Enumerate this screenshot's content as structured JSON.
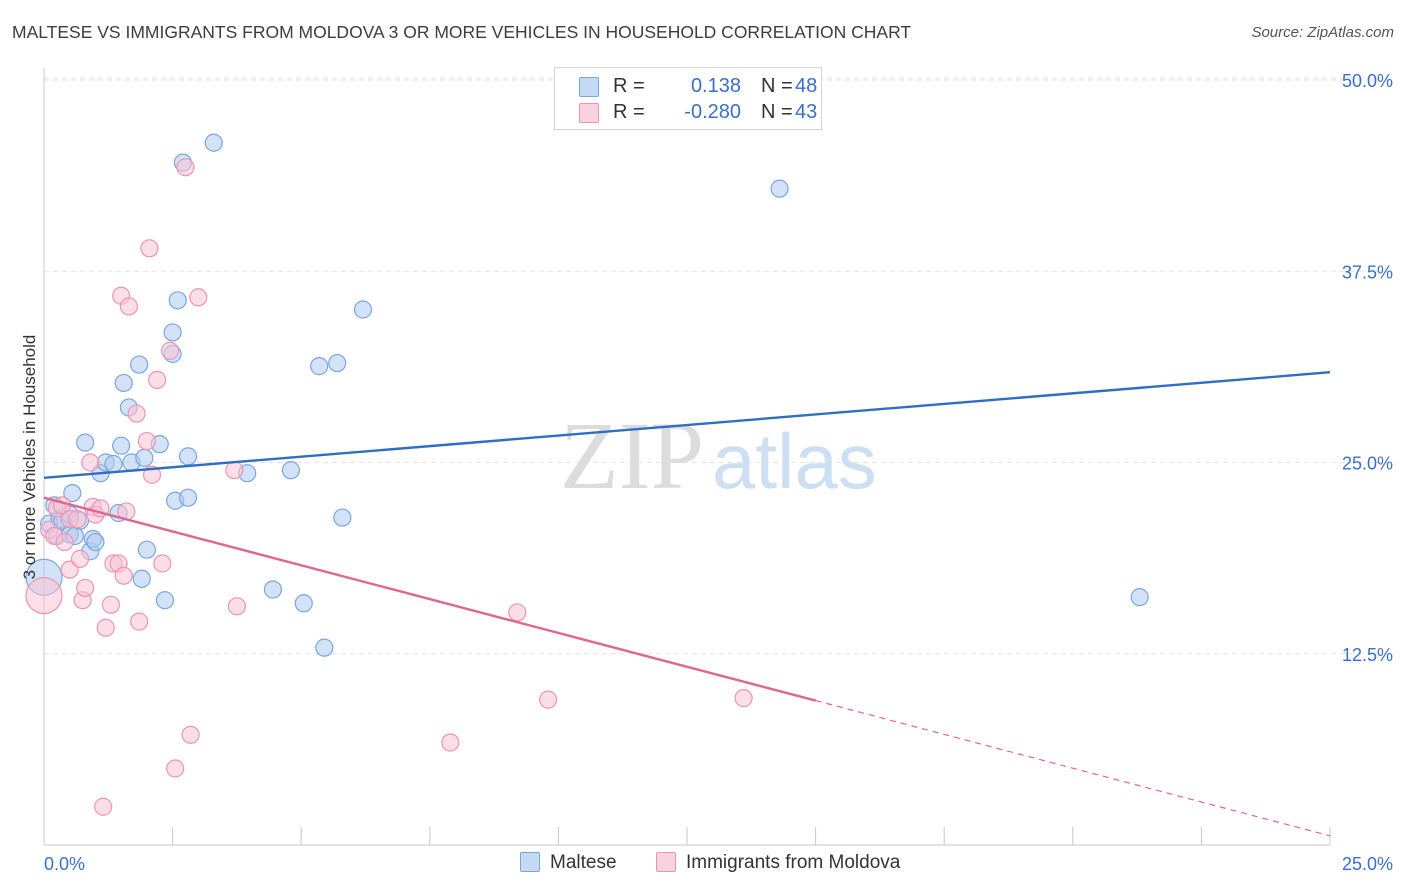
{
  "page": {
    "title": "MALTESE VS IMMIGRANTS FROM MOLDOVA 3 OR MORE VEHICLES IN HOUSEHOLD CORRELATION CHART",
    "source": "Source: ZipAtlas.com"
  },
  "legend": {
    "r_label": "R =",
    "n_label": "N =",
    "maltese": {
      "r": "0.138",
      "n": "48"
    },
    "moldova": {
      "r": "-0.280",
      "n": "43"
    }
  },
  "watermark": {
    "zip": "ZIP",
    "atlas": "atlas"
  },
  "colors": {
    "maltese_fill": "#aecbf0",
    "maltese_stroke": "#7aa6e0",
    "maltese_line": "#2f6ec6",
    "moldova_fill": "#f7c3d3",
    "moldova_stroke": "#ec95b3",
    "moldova_line": "#e06591",
    "tick_label": "#3a6fc9",
    "grid": "#e3e3e3"
  },
  "chart_data": {
    "type": "scatter",
    "title": "MALTESE VS IMMIGRANTS FROM MOLDOVA 3 OR MORE VEHICLES IN HOUSEHOLD CORRELATION CHART",
    "xlabel": "",
    "ylabel": "3 or more Vehicles in Household",
    "xlim": [
      0,
      25
    ],
    "ylim": [
      0,
      50
    ],
    "x_tick_labels": [
      {
        "value": 0,
        "label": "0.0%"
      },
      {
        "value": 25,
        "label": "25.0%"
      }
    ],
    "y_tick_labels": [
      {
        "value": 50,
        "label": "50.0%"
      },
      {
        "value": 37.5,
        "label": "37.5%"
      },
      {
        "value": 25,
        "label": "25.0%"
      },
      {
        "value": 12.5,
        "label": "12.5%"
      }
    ],
    "grid": true,
    "legend_position": "top-center",
    "series": [
      {
        "name": "Maltese",
        "r": 0.138,
        "n": 48,
        "trend": {
          "x": [
            0,
            25
          ],
          "y": [
            24.0,
            30.9
          ],
          "dashed_from": null
        },
        "points": [
          [
            0.0,
            17.5
          ],
          [
            0.1,
            21.0
          ],
          [
            0.2,
            22.2
          ],
          [
            0.25,
            20.2
          ],
          [
            0.3,
            21.3
          ],
          [
            0.35,
            21.2
          ],
          [
            0.5,
            21.6
          ],
          [
            0.5,
            20.3
          ],
          [
            0.55,
            23.0
          ],
          [
            0.8,
            26.3
          ],
          [
            0.9,
            19.2
          ],
          [
            0.95,
            20.0
          ],
          [
            1.1,
            24.3
          ],
          [
            1.2,
            25.0
          ],
          [
            1.35,
            24.9
          ],
          [
            1.45,
            21.7
          ],
          [
            1.5,
            26.1
          ],
          [
            1.55,
            30.2
          ],
          [
            1.65,
            28.6
          ],
          [
            1.7,
            25.0
          ],
          [
            1.85,
            31.4
          ],
          [
            1.9,
            17.4
          ],
          [
            1.95,
            25.3
          ],
          [
            2.0,
            19.3
          ],
          [
            2.25,
            26.2
          ],
          [
            2.35,
            16.0
          ],
          [
            2.5,
            32.1
          ],
          [
            2.5,
            33.5
          ],
          [
            2.55,
            22.5
          ],
          [
            2.6,
            35.6
          ],
          [
            2.7,
            44.6
          ],
          [
            2.8,
            22.7
          ],
          [
            2.8,
            25.4
          ],
          [
            3.3,
            45.9
          ],
          [
            3.95,
            24.3
          ],
          [
            4.45,
            16.7
          ],
          [
            4.8,
            24.5
          ],
          [
            5.05,
            15.8
          ],
          [
            5.35,
            31.3
          ],
          [
            5.45,
            12.9
          ],
          [
            5.7,
            31.5
          ],
          [
            5.8,
            21.4
          ],
          [
            6.2,
            35.0
          ],
          [
            14.3,
            42.9
          ],
          [
            21.3,
            16.2
          ],
          [
            0.6,
            20.2
          ],
          [
            1.0,
            19.8
          ],
          [
            0.7,
            21.2
          ]
        ]
      },
      {
        "name": "Immigrants from Moldova",
        "r": -0.28,
        "n": 43,
        "trend": {
          "x": [
            0,
            25
          ],
          "y": [
            22.7,
            0.6
          ],
          "dashed_from": 15.0
        },
        "points": [
          [
            0.0,
            16.3
          ],
          [
            0.1,
            20.6
          ],
          [
            0.2,
            20.2
          ],
          [
            0.25,
            22.0
          ],
          [
            0.35,
            22.2
          ],
          [
            0.4,
            19.8
          ],
          [
            0.5,
            21.3
          ],
          [
            0.5,
            18.0
          ],
          [
            0.65,
            21.3
          ],
          [
            0.7,
            18.7
          ],
          [
            0.75,
            16.0
          ],
          [
            0.8,
            16.8
          ],
          [
            0.9,
            25.0
          ],
          [
            0.95,
            22.1
          ],
          [
            1.0,
            21.6
          ],
          [
            1.1,
            22.0
          ],
          [
            1.2,
            14.2
          ],
          [
            1.3,
            15.7
          ],
          [
            1.35,
            18.4
          ],
          [
            1.45,
            18.4
          ],
          [
            1.5,
            35.9
          ],
          [
            1.55,
            17.6
          ],
          [
            1.6,
            21.8
          ],
          [
            1.65,
            35.2
          ],
          [
            1.8,
            28.2
          ],
          [
            1.85,
            14.6
          ],
          [
            2.0,
            26.4
          ],
          [
            2.05,
            39.0
          ],
          [
            2.1,
            24.2
          ],
          [
            2.2,
            30.4
          ],
          [
            2.3,
            18.4
          ],
          [
            2.45,
            32.3
          ],
          [
            2.55,
            5.0
          ],
          [
            2.75,
            44.3
          ],
          [
            2.85,
            7.2
          ],
          [
            3.0,
            35.8
          ],
          [
            3.7,
            24.5
          ],
          [
            3.75,
            15.6
          ],
          [
            1.15,
            2.5
          ],
          [
            7.9,
            6.7
          ],
          [
            9.2,
            15.2
          ],
          [
            9.8,
            9.5
          ],
          [
            13.6,
            9.6
          ]
        ]
      }
    ]
  }
}
